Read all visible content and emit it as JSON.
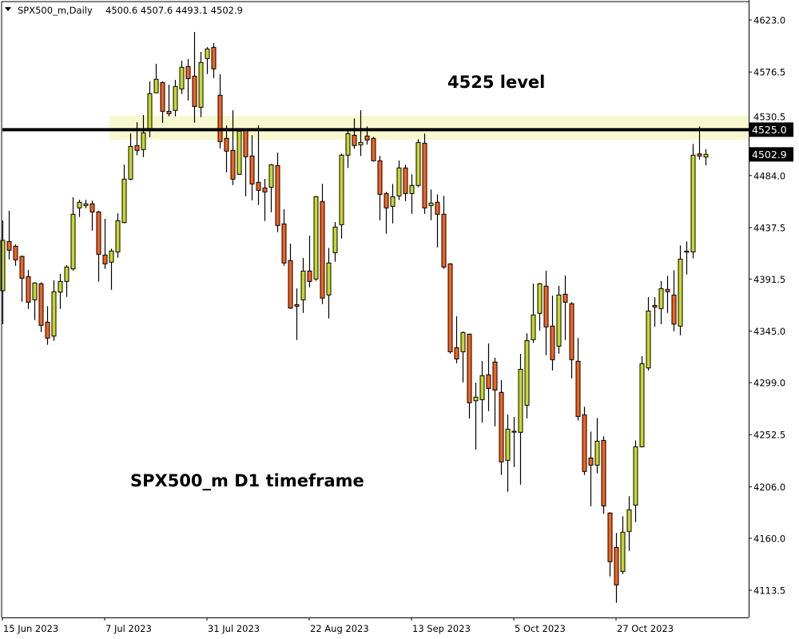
{
  "header": {
    "symbol_timeframe": "SPX500_m,Daily",
    "ohlc_text": "4500.6 4507.6 4493.1 4502.9",
    "menu_icon": "triangle-down-icon"
  },
  "colors": {
    "bull": "#c8d82a",
    "bear": "#f4621f",
    "band": "#f7f8d0",
    "line": "#000000",
    "background": "#ffffff"
  },
  "chart_data": {
    "type": "candlestick",
    "title": "",
    "ylim": [
      4093,
      4638
    ],
    "grid": false,
    "y_tick_labels": [
      "4623.0",
      "4576.5",
      "4530.5",
      "4484.0",
      "4437.5",
      "4391.5",
      "4345.0",
      "4299.0",
      "4252.5",
      "4206.0",
      "4160.0",
      "4113.5"
    ],
    "x_tick_labels": [
      {
        "bar": 0,
        "label": "15 Jun 2023"
      },
      {
        "bar": 16,
        "label": "7 Jul 2023"
      },
      {
        "bar": 32,
        "label": "31 Jul 2023"
      },
      {
        "bar": 48,
        "label": "22 Aug 2023"
      },
      {
        "bar": 64,
        "label": "13 Sep 2023"
      },
      {
        "bar": 80,
        "label": "5 Oct 2023"
      },
      {
        "bar": 96,
        "label": "27 Oct 2023"
      }
    ],
    "ohlc_order": [
      "open",
      "high",
      "low",
      "close"
    ],
    "ohlc": [
      [
        4381.1,
        4443.9,
        4351.1,
        4426.1
      ],
      [
        4425.1,
        4452.5,
        4409.1,
        4417.3
      ],
      [
        4420.8,
        4422.5,
        4403.4,
        4408.7
      ],
      [
        4411.8,
        4412.5,
        4371.3,
        4392.3
      ],
      [
        4393.7,
        4399.6,
        4364.9,
        4370.9
      ],
      [
        4373.0,
        4388.7,
        4354.9,
        4388.0
      ],
      [
        4387.3,
        4388.7,
        4344.2,
        4350.2
      ],
      [
        4353.0,
        4367.3,
        4332.8,
        4338.8
      ],
      [
        4340.6,
        4390.4,
        4336.4,
        4380.2
      ],
      [
        4379.9,
        4396.1,
        4364.9,
        4389.4
      ],
      [
        4389.4,
        4403.9,
        4375.6,
        4402.3
      ],
      [
        4400.6,
        4464.6,
        4399.1,
        4449.4
      ],
      [
        4455.1,
        4462.4,
        4447.0,
        4460.1
      ],
      [
        4457.2,
        4462.4,
        4454.8,
        4458.7
      ],
      [
        4458.7,
        4461.5,
        4434.8,
        4451.5
      ],
      [
        4451.5,
        4452.5,
        4389.2,
        4413.7
      ],
      [
        4413.0,
        4445.3,
        4400.6,
        4405.1
      ],
      [
        4406.6,
        4418.7,
        4382.0,
        4416.6
      ],
      [
        4415.8,
        4450.3,
        4410.6,
        4443.7
      ],
      [
        4442.0,
        4493.8,
        4441.3,
        4480.8
      ],
      [
        4480.8,
        4521.7,
        4479.8,
        4510.0
      ],
      [
        4510.8,
        4531.7,
        4502.2,
        4506.5
      ],
      [
        4507.2,
        4538.1,
        4500.5,
        4522.2
      ],
      [
        4524.3,
        4568.1,
        4518.3,
        4557.1
      ],
      [
        4557.9,
        4583.8,
        4557.9,
        4570.0
      ],
      [
        4567.1,
        4568.1,
        4531.0,
        4541.4
      ],
      [
        4541.4,
        4565.2,
        4536.9,
        4539.3
      ],
      [
        4542.2,
        4569.5,
        4536.9,
        4563.6
      ],
      [
        4561.4,
        4586.6,
        4556.9,
        4580.7
      ],
      [
        4581.4,
        4588.0,
        4551.1,
        4570.7
      ],
      [
        4572.8,
        4612.3,
        4531.2,
        4545.7
      ],
      [
        4545.0,
        4594.5,
        4536.2,
        4585.0
      ],
      [
        4588.5,
        4598.7,
        4574.7,
        4597.1
      ],
      [
        4598.5,
        4602.3,
        4571.1,
        4579.3
      ],
      [
        4555.7,
        4574.5,
        4508.3,
        4514.3
      ],
      [
        4517.2,
        4528.8,
        4486.9,
        4505.8
      ],
      [
        4506.5,
        4542.4,
        4475.5,
        4480.8
      ],
      [
        4485.1,
        4524.0,
        4484.5,
        4523.6
      ],
      [
        4524.3,
        4525.0,
        4465.5,
        4500.8
      ],
      [
        4501.5,
        4520.0,
        4461.9,
        4476.5
      ],
      [
        4477.9,
        4528.8,
        4457.7,
        4470.8
      ],
      [
        4472.9,
        4481.0,
        4443.4,
        4469.4
      ],
      [
        4473.6,
        4494.3,
        4451.2,
        4493.6
      ],
      [
        4492.9,
        4504.5,
        4433.4,
        4439.4
      ],
      [
        4440.8,
        4453.9,
        4403.4,
        4405.9
      ],
      [
        4408.0,
        4423.2,
        4364.9,
        4365.6
      ],
      [
        4368.7,
        4383.2,
        4337.1,
        4367.3
      ],
      [
        4373.0,
        4410.4,
        4361.3,
        4398.7
      ],
      [
        4398.7,
        4430.3,
        4384.2,
        4389.4
      ],
      [
        4391.6,
        4465.8,
        4389.9,
        4465.1
      ],
      [
        4460.8,
        4476.7,
        4369.2,
        4374.5
      ],
      [
        4377.3,
        4419.4,
        4356.3,
        4405.9
      ],
      [
        4415.1,
        4442.5,
        4407.0,
        4438.0
      ],
      [
        4440.1,
        4503.6,
        4427.7,
        4502.2
      ],
      [
        4502.2,
        4525.0,
        4490.8,
        4521.5
      ],
      [
        4520.0,
        4535.0,
        4507.9,
        4510.8
      ],
      [
        4511.5,
        4542.4,
        4501.5,
        4513.6
      ],
      [
        4519.3,
        4527.9,
        4511.7,
        4515.8
      ],
      [
        4517.2,
        4518.6,
        4496.5,
        4497.2
      ],
      [
        4497.2,
        4501.5,
        4444.1,
        4467.2
      ],
      [
        4467.9,
        4469.4,
        4432.0,
        4455.1
      ],
      [
        4456.5,
        4476.5,
        4441.3,
        4465.1
      ],
      [
        4465.8,
        4497.4,
        4462.2,
        4490.8
      ],
      [
        4490.8,
        4493.6,
        4461.2,
        4467.9
      ],
      [
        4467.9,
        4485.1,
        4449.8,
        4475.1
      ],
      [
        4475.1,
        4516.5,
        4473.6,
        4513.6
      ],
      [
        4512.9,
        4521.5,
        4449.8,
        4455.1
      ],
      [
        4457.2,
        4471.5,
        4444.1,
        4459.4
      ],
      [
        4460.1,
        4467.2,
        4419.8,
        4449.4
      ],
      [
        4449.4,
        4465.8,
        4400.6,
        4402.3
      ],
      [
        4405.1,
        4405.8,
        4324.9,
        4326.6
      ],
      [
        4330.2,
        4358.3,
        4316.2,
        4320.2
      ],
      [
        4326.6,
        4344.7,
        4299.2,
        4343.8
      ],
      [
        4342.3,
        4342.8,
        4266.9,
        4281.0
      ],
      [
        4282.8,
        4299.0,
        4239.3,
        4286.0
      ],
      [
        4283.8,
        4318.3,
        4263.4,
        4305.2
      ],
      [
        4306.0,
        4334.0,
        4273.6,
        4293.8
      ],
      [
        4317.4,
        4321.2,
        4260.0,
        4292.4
      ],
      [
        4290.3,
        4301.2,
        4216.5,
        4228.2
      ],
      [
        4229.6,
        4270.5,
        4201.5,
        4257.4
      ],
      [
        4255.5,
        4268.3,
        4223.6,
        4255.6
      ],
      [
        4254.6,
        4324.7,
        4207.9,
        4310.9
      ],
      [
        4278.8,
        4343.1,
        4267.1,
        4336.6
      ],
      [
        4337.4,
        4387.5,
        4334.5,
        4359.5
      ],
      [
        4360.9,
        4388.0,
        4345.6,
        4387.3
      ],
      [
        4385.2,
        4398.9,
        4323.5,
        4348.8
      ],
      [
        4349.5,
        4376.8,
        4309.9,
        4319.5
      ],
      [
        4331.6,
        4385.4,
        4324.9,
        4377.3
      ],
      [
        4378.0,
        4394.7,
        4337.1,
        4370.9
      ],
      [
        4369.5,
        4370.9,
        4302.8,
        4319.5
      ],
      [
        4318.1,
        4338.8,
        4265.3,
        4268.8
      ],
      [
        4270.3,
        4277.4,
        4216.5,
        4219.6
      ],
      [
        4231.7,
        4255.3,
        4188.6,
        4225.3
      ],
      [
        4225.3,
        4267.4,
        4217.9,
        4246.7
      ],
      [
        4247.4,
        4251.0,
        4181.8,
        4188.9
      ],
      [
        4182.5,
        4183.2,
        4125.8,
        4139.0
      ],
      [
        4151.8,
        4164.7,
        4102.3,
        4118.3
      ],
      [
        4130.4,
        4179.6,
        4128.0,
        4165.4
      ],
      [
        4166.1,
        4197.5,
        4148.7,
        4185.4
      ],
      [
        4189.6,
        4247.4,
        4174.4,
        4241.7
      ],
      [
        4241.7,
        4322.6,
        4241.2,
        4315.9
      ],
      [
        4312.1,
        4375.4,
        4309.7,
        4363.0
      ],
      [
        4368.0,
        4375.4,
        4349.0,
        4366.6
      ],
      [
        4365.2,
        4389.7,
        4351.3,
        4383.0
      ],
      [
        4382.3,
        4394.4,
        4361.3,
        4380.2
      ],
      [
        4377.3,
        4399.4,
        4344.9,
        4351.3
      ],
      [
        4349.5,
        4421.6,
        4341.3,
        4409.4
      ],
      [
        4416.3,
        4425.1,
        4395.6,
        4416.5
      ],
      [
        4415.8,
        4512.2,
        4410.1,
        4502.2
      ],
      [
        4503.3,
        4527.9,
        4498.3,
        4501.5
      ],
      [
        4500.6,
        4507.6,
        4493.1,
        4502.9
      ]
    ],
    "horizontal_line": {
      "value": 4525.0,
      "label": "4525.0"
    },
    "zone": {
      "from": 4516.0,
      "to": 4537.4,
      "start_bar": 17
    },
    "last_price": {
      "value": 4502.9,
      "label": "4502.9"
    },
    "annotations": [
      {
        "text": "4525 level"
      },
      {
        "text": "SPX500_m D1 timeframe"
      }
    ]
  }
}
